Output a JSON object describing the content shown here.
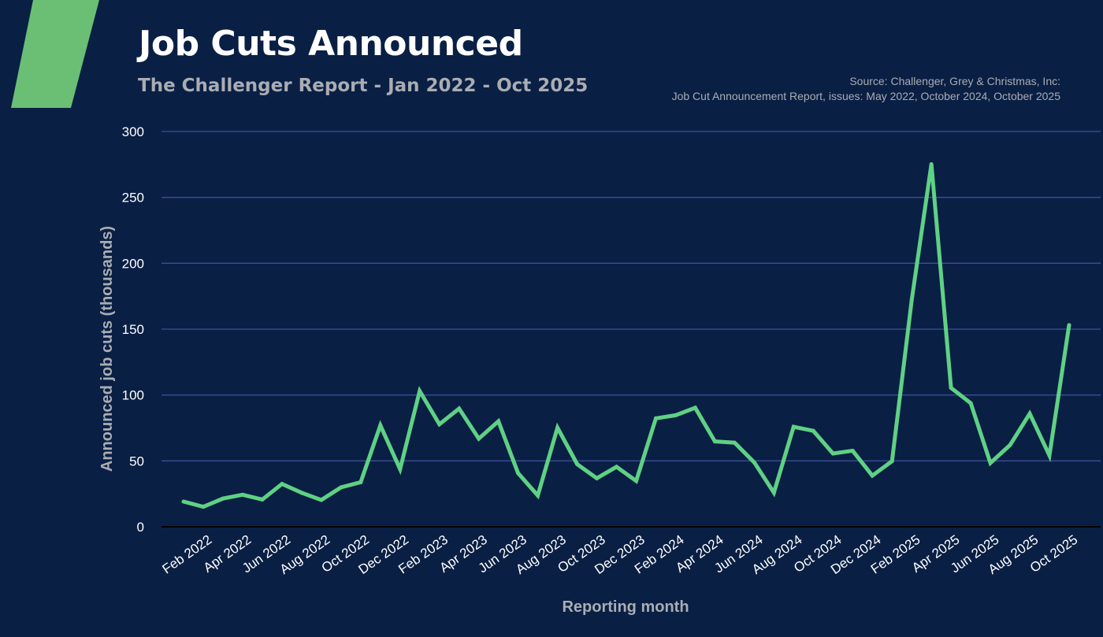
{
  "header": {
    "title": "Job Cuts Announced",
    "subtitle": "The Challenger Report - Jan 2022 - Oct 2025",
    "source_line1": "Source: Challenger, Grey & Christmas, Inc:",
    "source_line2": "Job Cut Announcement Report, issues: May 2022, October 2024, October 2025"
  },
  "colors": {
    "background": "#0a1f44",
    "line": "#5fd184",
    "accent": "#6abf75",
    "grid": "#3a4f9a"
  },
  "chart_data": {
    "type": "line",
    "xlabel": "Reporting month",
    "ylabel": "Announced job cuts (thousands)",
    "ylim": [
      0,
      300
    ],
    "yticks": [
      0,
      50,
      100,
      150,
      200,
      250,
      300
    ],
    "grid": true,
    "x": [
      "Jan 2022",
      "Feb 2022",
      "Mar 2022",
      "Apr 2022",
      "May 2022",
      "Jun 2022",
      "Jul 2022",
      "Aug 2022",
      "Sep 2022",
      "Oct 2022",
      "Nov 2022",
      "Dec 2022",
      "Jan 2023",
      "Feb 2023",
      "Mar 2023",
      "Apr 2023",
      "May 2023",
      "Jun 2023",
      "Jul 2023",
      "Aug 2023",
      "Sep 2023",
      "Oct 2023",
      "Nov 2023",
      "Dec 2023",
      "Jan 2024",
      "Feb 2024",
      "Mar 2024",
      "Apr 2024",
      "May 2024",
      "Jun 2024",
      "Jul 2024",
      "Aug 2024",
      "Sep 2024",
      "Oct 2024",
      "Nov 2024",
      "Dec 2024",
      "Jan 2025",
      "Feb 2025",
      "Mar 2025",
      "Apr 2025",
      "May 2025",
      "Jun 2025",
      "Jul 2025",
      "Aug 2025",
      "Sep 2025",
      "Oct 2025"
    ],
    "xtick_labels": [
      "Feb 2022",
      "Apr 2022",
      "Jun 2022",
      "Aug 2022",
      "Oct 2022",
      "Dec 2022",
      "Feb 2023",
      "Apr 2023",
      "Jun 2023",
      "Aug 2023",
      "Oct 2023",
      "Dec 2023",
      "Feb 2024",
      "Apr 2024",
      "Jun 2024",
      "Aug 2024",
      "Oct 2024",
      "Dec 2024",
      "Feb 2025",
      "Apr 2025",
      "Jun 2025",
      "Aug 2025",
      "Oct 2025"
    ],
    "values": [
      19.1,
      15.2,
      21.4,
      24.3,
      20.7,
      32.5,
      25.8,
      20.3,
      29.9,
      33.8,
      77.0,
      43.7,
      103.0,
      77.8,
      89.7,
      66.9,
      80.1,
      40.7,
      23.7,
      75.2,
      47.5,
      36.8,
      45.5,
      34.8,
      82.3,
      84.6,
      90.3,
      64.8,
      63.8,
      48.8,
      25.9,
      75.9,
      72.8,
      55.6,
      57.7,
      38.8,
      49.8,
      172.0,
      275.2,
      105.4,
      93.8,
      48.4,
      62.1,
      85.9,
      54.1,
      153.1
    ]
  }
}
